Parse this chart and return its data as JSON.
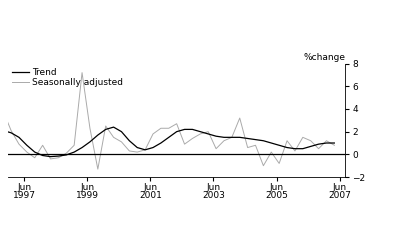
{
  "ylabel": "%change",
  "ylim": [
    -2,
    8
  ],
  "yticks": [
    -2,
    0,
    2,
    4,
    6,
    8
  ],
  "xlim": [
    1996.9,
    2007.6
  ],
  "xtick_positions": [
    1997.417,
    1999.417,
    2001.417,
    2003.417,
    2005.417,
    2007.417
  ],
  "xtick_labels": [
    "Jun\n1997",
    "Jun\n1999",
    "Jun\n2001",
    "Jun\n2003",
    "Jun\n2005",
    "Jun\n2007"
  ],
  "trend_color": "#000000",
  "seasonal_color": "#aaaaaa",
  "zero_line_color": "#000000",
  "background_color": "#ffffff",
  "legend_trend": "Trend",
  "legend_seasonal": "Seasonally adjusted",
  "trend_x": [
    1996.75,
    1997.0,
    1997.25,
    1997.5,
    1997.75,
    1998.0,
    1998.25,
    1998.5,
    1998.75,
    1999.0,
    1999.25,
    1999.5,
    1999.75,
    2000.0,
    2000.25,
    2000.5,
    2000.75,
    2001.0,
    2001.25,
    2001.5,
    2001.75,
    2002.0,
    2002.25,
    2002.5,
    2002.75,
    2003.0,
    2003.25,
    2003.5,
    2003.75,
    2004.0,
    2004.25,
    2004.5,
    2004.75,
    2005.0,
    2005.25,
    2005.5,
    2005.75,
    2006.0,
    2006.25,
    2006.5,
    2006.75,
    2007.0,
    2007.25
  ],
  "trend_y": [
    2.1,
    1.9,
    1.5,
    0.8,
    0.2,
    -0.1,
    -0.2,
    -0.15,
    -0.05,
    0.2,
    0.6,
    1.1,
    1.7,
    2.2,
    2.4,
    2.0,
    1.2,
    0.6,
    0.4,
    0.6,
    1.0,
    1.5,
    2.0,
    2.2,
    2.2,
    2.0,
    1.8,
    1.6,
    1.5,
    1.5,
    1.5,
    1.4,
    1.3,
    1.2,
    1.0,
    0.8,
    0.6,
    0.5,
    0.5,
    0.7,
    0.9,
    1.0,
    1.0
  ],
  "seasonal_x": [
    1996.75,
    1997.0,
    1997.25,
    1997.5,
    1997.75,
    1998.0,
    1998.25,
    1998.5,
    1998.75,
    1999.0,
    1999.25,
    1999.5,
    1999.75,
    2000.0,
    2000.25,
    2000.5,
    2000.75,
    2001.0,
    2001.25,
    2001.5,
    2001.75,
    2002.0,
    2002.25,
    2002.5,
    2002.75,
    2003.0,
    2003.25,
    2003.5,
    2003.75,
    2004.0,
    2004.25,
    2004.5,
    2004.75,
    2005.0,
    2005.25,
    2005.5,
    2005.75,
    2006.0,
    2006.25,
    2006.5,
    2006.75,
    2007.0,
    2007.25
  ],
  "seasonal_y": [
    3.8,
    2.1,
    0.9,
    0.2,
    -0.3,
    0.8,
    -0.4,
    -0.3,
    0.1,
    0.8,
    7.2,
    2.3,
    -1.3,
    2.5,
    1.5,
    1.1,
    0.3,
    0.2,
    0.4,
    1.8,
    2.3,
    2.3,
    2.7,
    0.9,
    1.4,
    1.8,
    2.0,
    0.5,
    1.2,
    1.5,
    3.2,
    0.6,
    0.8,
    -1.0,
    0.2,
    -0.8,
    1.2,
    0.3,
    1.5,
    1.2,
    0.5,
    1.2,
    0.8
  ]
}
